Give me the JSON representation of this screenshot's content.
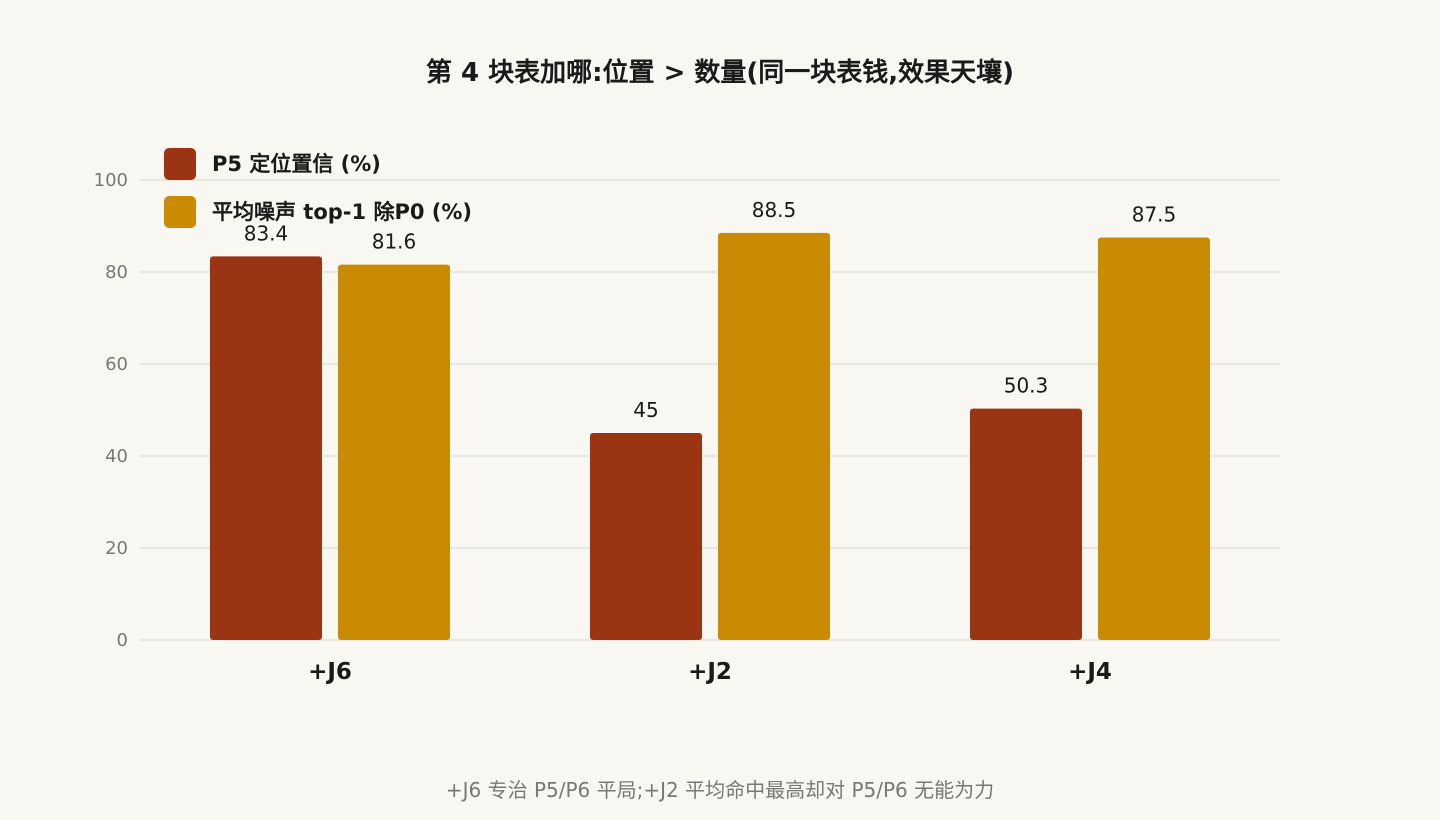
{
  "title": "第 4 块表加哪:位置 > 数量(同一块表钱,效果天壤)",
  "footnote": "+J6 专治 P5/P6 平局;+J2 平均命中最高却对 P5/P6 无能为力",
  "colors": {
    "background": "#f9f7f2",
    "series1": "#9a3412",
    "series2": "#ca8a04",
    "grid": "#e4e0d6",
    "axis_text": "#777777"
  },
  "chart_data": {
    "type": "bar",
    "categories": [
      "+J6",
      "+J2",
      "+J4"
    ],
    "series": [
      {
        "name": "P5 定位置信 (%)",
        "values": [
          83.4,
          45,
          50.3
        ],
        "labels": [
          "83.4",
          "45",
          "50.3"
        ]
      },
      {
        "name": "平均噪声 top-1 除P0 (%)",
        "values": [
          81.6,
          88.5,
          87.5
        ],
        "labels": [
          "81.6",
          "88.5",
          "87.5"
        ]
      }
    ],
    "ylim": [
      0,
      100
    ],
    "yticks": [
      0,
      20,
      40,
      60,
      80,
      100
    ],
    "ytick_labels": [
      "0",
      "20",
      "40",
      "60",
      "80",
      "100"
    ],
    "grid": true,
    "legend_position": "top-left",
    "xlabel": "",
    "ylabel": ""
  }
}
